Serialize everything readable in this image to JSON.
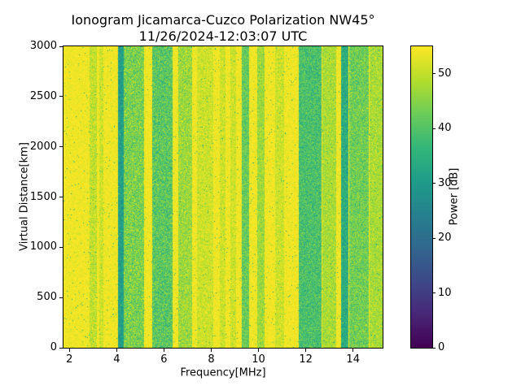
{
  "chart_data": {
    "type": "heatmap",
    "title": "Ionogram Jicamarca-Cuzco Polarization NW45°",
    "subtitle": "11/26/2024-12:03:07 UTC",
    "xlabel": "Frequency[MHz]",
    "ylabel": "Virtual Distance[km]",
    "colorbar_label": "Power [dB]",
    "xlim": [
      1.75,
      15.25
    ],
    "ylim": [
      0,
      3000
    ],
    "clim": [
      0,
      55
    ],
    "x_ticks": [
      2,
      4,
      6,
      8,
      10,
      12,
      14
    ],
    "y_ticks": [
      0,
      500,
      1000,
      1500,
      2000,
      2500,
      3000
    ],
    "colorbar_ticks": [
      0,
      10,
      20,
      30,
      40,
      50
    ],
    "colormap": "viridis",
    "grid": false,
    "legend": "colorbar-right",
    "background_power_db": 54,
    "background_noise_db": 3,
    "speckle_probability": 0.015,
    "speckle_power_range": [
      30,
      50
    ],
    "bands": [
      {
        "f_start": 2.85,
        "f_end": 3.15,
        "power_db": 50,
        "noise_db": 6
      },
      {
        "f_start": 3.25,
        "f_end": 3.45,
        "power_db": 51,
        "noise_db": 5
      },
      {
        "f_start": 4.05,
        "f_end": 4.3,
        "power_db": 31,
        "noise_db": 7
      },
      {
        "f_start": 4.3,
        "f_end": 5.15,
        "power_db": 44,
        "noise_db": 9
      },
      {
        "f_start": 5.5,
        "f_end": 6.35,
        "power_db": 41,
        "noise_db": 9
      },
      {
        "f_start": 6.6,
        "f_end": 7.2,
        "power_db": 47,
        "noise_db": 7
      },
      {
        "f_start": 7.4,
        "f_end": 8.1,
        "power_db": 51,
        "noise_db": 5
      },
      {
        "f_start": 8.35,
        "f_end": 8.6,
        "power_db": 51,
        "noise_db": 5
      },
      {
        "f_start": 8.8,
        "f_end": 9.05,
        "power_db": 51,
        "noise_db": 5
      },
      {
        "f_start": 9.3,
        "f_end": 9.6,
        "power_db": 42,
        "noise_db": 7
      },
      {
        "f_start": 9.95,
        "f_end": 10.25,
        "power_db": 47,
        "noise_db": 6
      },
      {
        "f_start": 10.7,
        "f_end": 11.1,
        "power_db": 51,
        "noise_db": 5
      },
      {
        "f_start": 11.7,
        "f_end": 12.65,
        "power_db": 39,
        "noise_db": 8
      },
      {
        "f_start": 12.7,
        "f_end": 13.3,
        "power_db": 48,
        "noise_db": 6
      },
      {
        "f_start": 13.5,
        "f_end": 13.8,
        "power_db": 34,
        "noise_db": 7
      },
      {
        "f_start": 13.85,
        "f_end": 14.65,
        "power_db": 43,
        "noise_db": 8
      },
      {
        "f_start": 14.7,
        "f_end": 15.25,
        "power_db": 48,
        "noise_db": 6
      }
    ]
  },
  "colors": {
    "figure_background": "#ffffff",
    "colormap_low": "#440154",
    "colormap_mid": "#21918c",
    "colormap_high": "#fde725",
    "axis": "#000000"
  }
}
